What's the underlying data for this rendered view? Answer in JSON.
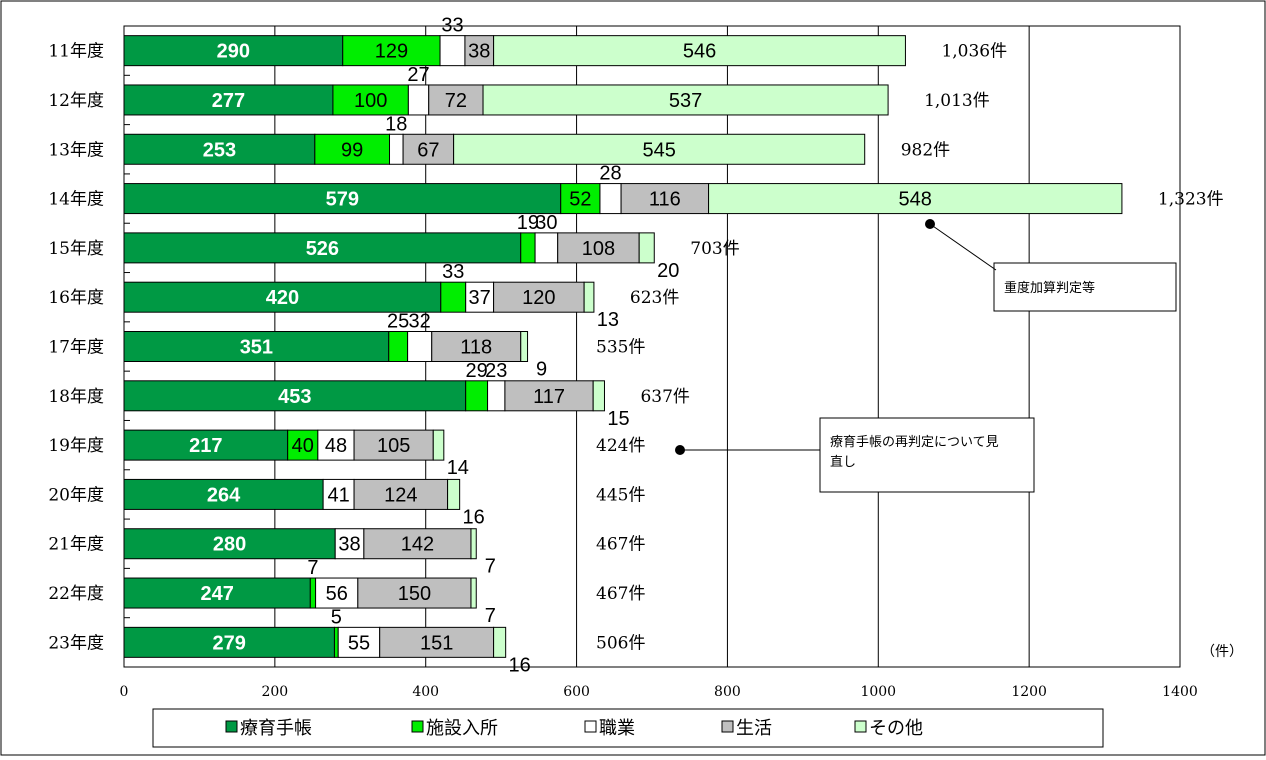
{
  "chart_data": {
    "type": "bar",
    "orientation": "horizontal",
    "stacked": true,
    "categories": [
      "11年度",
      "12年度",
      "13年度",
      "14年度",
      "15年度",
      "16年度",
      "17年度",
      "18年度",
      "19年度",
      "20年度",
      "21年度",
      "22年度",
      "23年度"
    ],
    "series": [
      {
        "name": "療育手帳",
        "color": "#009944",
        "values": [
          290,
          277,
          253,
          579,
          526,
          420,
          351,
          453,
          217,
          264,
          280,
          247,
          279
        ]
      },
      {
        "name": "施設入所",
        "color": "#00ee00",
        "values": [
          129,
          100,
          99,
          52,
          19,
          33,
          25,
          29,
          40,
          0,
          0,
          7,
          5
        ]
      },
      {
        "name": "職業",
        "color": "#ffffff",
        "values": [
          33,
          27,
          18,
          28,
          30,
          37,
          32,
          23,
          48,
          41,
          38,
          56,
          55
        ]
      },
      {
        "name": "生活",
        "color": "#bfbfbf",
        "values": [
          38,
          72,
          67,
          116,
          108,
          120,
          118,
          117,
          105,
          124,
          142,
          150,
          151
        ]
      },
      {
        "name": "その他",
        "color": "#ccffcc",
        "values": [
          546,
          537,
          545,
          548,
          20,
          13,
          9,
          15,
          14,
          16,
          7,
          7,
          16
        ]
      }
    ],
    "totals": [
      "1,036件",
      "1,013件",
      "982件",
      "1,323件",
      "703件",
      "623件",
      "535件",
      "637件",
      "424件",
      "445件",
      "467件",
      "467件",
      "506件"
    ],
    "xticks": [
      "0",
      "200",
      "400",
      "600",
      "800",
      "1000",
      "1200",
      "1400"
    ],
    "xlim": [
      0,
      1400
    ],
    "unit": "（件）",
    "grid": true,
    "legend_position": "bottom",
    "annotations": [
      {
        "text": "重度加算判定等",
        "points_to": "14年度 その他"
      },
      {
        "text": "療育手帳の再判定について見直し",
        "points_to": "19年度"
      }
    ]
  },
  "colors": {
    "axis": "#000000",
    "grid": "#000000",
    "segment_stroke": "#000000"
  }
}
